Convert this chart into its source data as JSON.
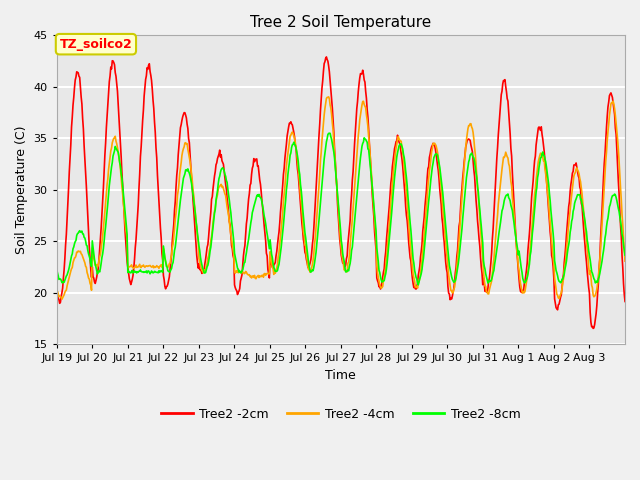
{
  "title": "Tree 2 Soil Temperature",
  "xlabel": "Time",
  "ylabel": "Soil Temperature (C)",
  "ylim": [
    15,
    45
  ],
  "yticks": [
    15,
    20,
    25,
    30,
    35,
    40,
    45
  ],
  "xtick_labels": [
    "Jul 19",
    "Jul 20",
    "Jul 21",
    "Jul 22",
    "Jul 23",
    "Jul 24",
    "Jul 25",
    "Jul 26",
    "Jul 27",
    "Jul 28",
    "Jul 29",
    "Jul 30",
    "Jul 31",
    "Aug 1",
    "Aug 2",
    "Aug 3"
  ],
  "series_colors": [
    "red",
    "orange",
    "lime"
  ],
  "series_labels": [
    "Tree2 -2cm",
    "Tree2 -4cm",
    "Tree2 -8cm"
  ],
  "annotation_text": "TZ_soilco2",
  "annotation_bg": "#ffffcc",
  "annotation_border": "#cccc00",
  "bg_color": "#e8e8e8",
  "grid_color": "white",
  "linewidth": 1.2,
  "n_days": 16,
  "peaks_2cm": [
    41.5,
    42.5,
    42.0,
    37.5,
    33.5,
    33.0,
    36.5,
    42.8,
    41.5,
    35.0,
    34.5,
    35.0,
    40.5,
    36.0,
    32.5,
    39.5
  ],
  "troughs_2cm": [
    19.0,
    21.0,
    21.0,
    20.5,
    22.0,
    20.0,
    22.5,
    22.5,
    22.5,
    20.5,
    20.5,
    19.5,
    20.0,
    20.0,
    18.5,
    16.5
  ],
  "peaks_4cm": [
    24.0,
    35.0,
    22.5,
    34.5,
    30.5,
    21.5,
    35.5,
    39.0,
    38.5,
    35.0,
    34.5,
    36.5,
    33.5,
    33.5,
    32.0,
    38.5
  ],
  "troughs_4cm": [
    19.5,
    22.5,
    22.5,
    22.5,
    22.0,
    22.0,
    22.0,
    22.0,
    22.0,
    20.5,
    20.5,
    20.0,
    20.0,
    20.0,
    19.5,
    19.5
  ],
  "peaks_8cm": [
    26.0,
    34.0,
    22.0,
    32.0,
    32.0,
    29.5,
    34.5,
    35.5,
    35.0,
    34.5,
    33.5,
    33.5,
    29.5,
    33.5,
    29.5,
    29.5
  ],
  "troughs_8cm": [
    21.0,
    22.0,
    22.0,
    22.0,
    22.0,
    22.0,
    22.0,
    22.0,
    22.0,
    21.0,
    21.0,
    21.0,
    21.0,
    21.0,
    21.0,
    21.0
  ]
}
